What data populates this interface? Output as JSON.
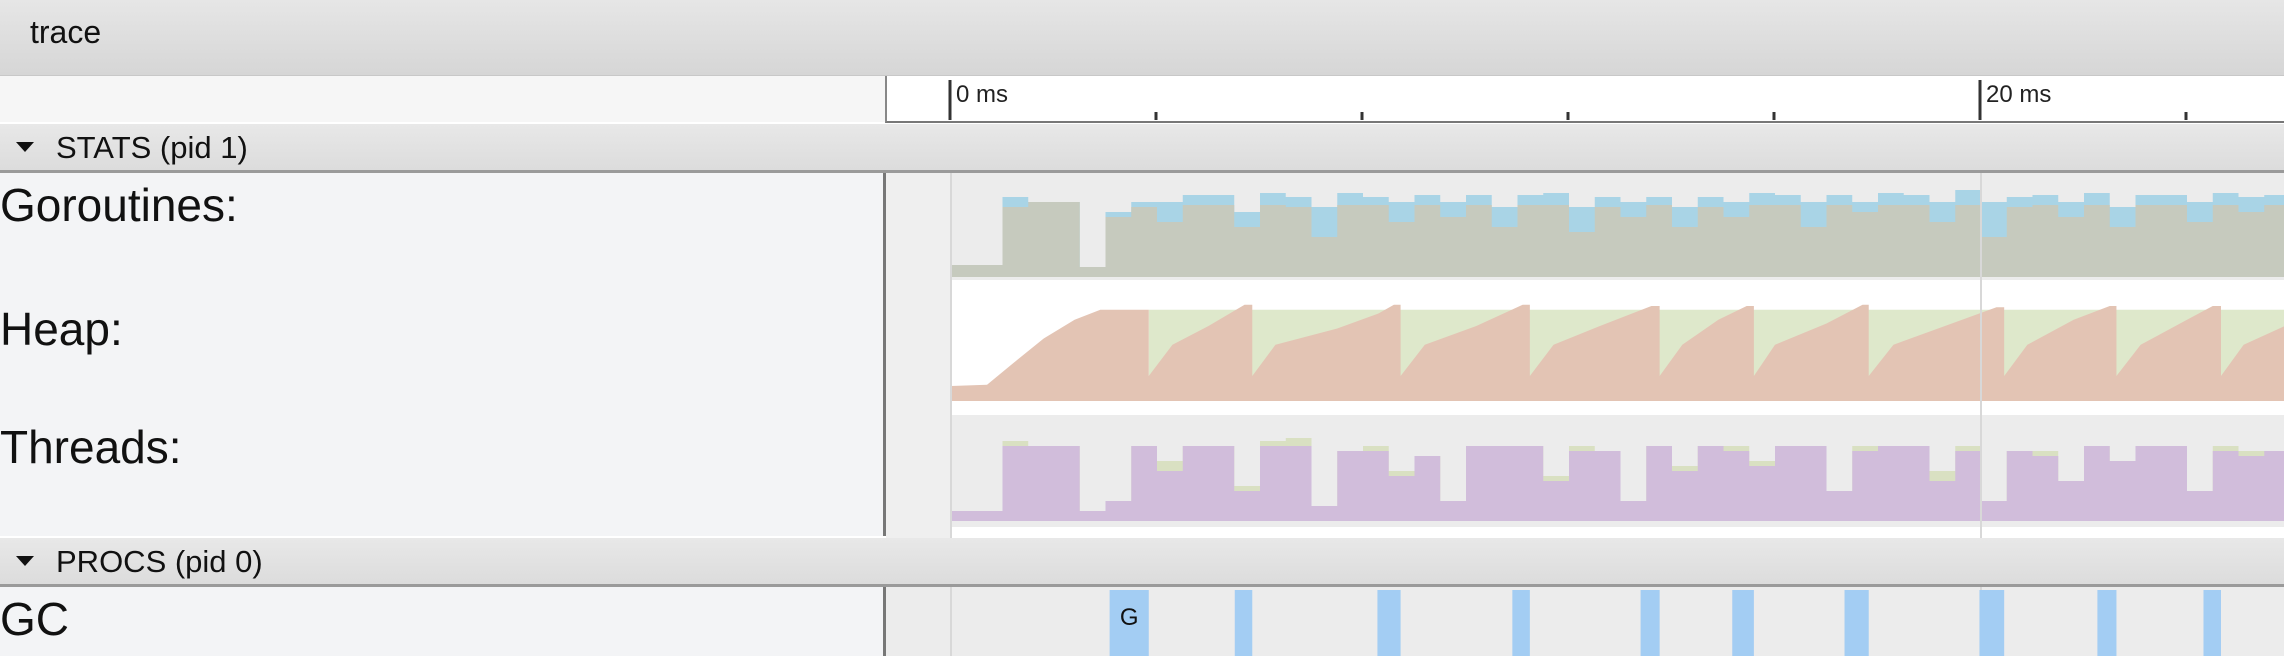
{
  "window": {
    "title": "trace"
  },
  "ruler": {
    "labels": [
      {
        "t": 0,
        "text": "0 ms"
      },
      {
        "t": 20,
        "text": "20 ms"
      }
    ],
    "tick_ms": [
      0,
      4,
      8,
      12,
      16,
      20,
      24
    ],
    "visible_range_ms": [
      0,
      25.9
    ]
  },
  "groups": [
    {
      "label": "STATS (pid 1)",
      "expanded": true
    },
    {
      "label": "PROCS (pid 0)",
      "expanded": true
    }
  ],
  "tracks": {
    "goroutines": {
      "label": "Goroutines:"
    },
    "heap": {
      "label": "Heap:"
    },
    "threads": {
      "label": "Threads:"
    },
    "gc": {
      "label": "GC",
      "first_slice_label": "G"
    }
  },
  "colors": {
    "goroutines_base": "#c6cabe",
    "goroutines_top": "#a9d4e6",
    "heap_alloc": "#e3c4b4",
    "heap_next_gc": "#dee8cb",
    "threads_base": "#d1bddb",
    "threads_top": "#d9e0c2",
    "gc_slice": "#a3cdf3"
  },
  "chart_data": [
    {
      "type": "area",
      "name": "goroutines",
      "x_step_ms": 0.5,
      "series": [
        {
          "values": [
            0.12,
            0.12,
            0.7,
            0.75,
            0.75,
            0.1,
            0.6,
            0.7,
            0.55,
            0.72,
            0.72,
            0.5,
            0.72,
            0.7,
            0.4,
            0.72,
            0.72,
            0.55,
            0.72,
            0.6,
            0.72,
            0.5,
            0.72,
            0.72,
            0.45,
            0.7,
            0.6,
            0.72,
            0.5,
            0.7,
            0.6,
            0.72,
            0.72,
            0.5,
            0.72,
            0.65,
            0.72,
            0.72,
            0.55,
            0.72,
            0.4,
            0.7,
            0.72,
            0.6,
            0.72,
            0.5,
            0.72,
            0.72,
            0.55,
            0.72,
            0.65,
            0.72
          ]
        },
        {
          "values": [
            0,
            0,
            0.1,
            0,
            0,
            0,
            0.05,
            0.05,
            0.2,
            0.1,
            0.1,
            0.15,
            0.12,
            0.1,
            0.3,
            0.12,
            0.08,
            0.2,
            0.1,
            0.15,
            0.1,
            0.2,
            0.1,
            0.12,
            0.25,
            0.1,
            0.15,
            0.08,
            0.2,
            0.1,
            0.15,
            0.12,
            0.1,
            0.25,
            0.1,
            0.1,
            0.12,
            0.1,
            0.2,
            0.15,
            0.35,
            0.1,
            0.1,
            0.15,
            0.12,
            0.2,
            0.1,
            0.1,
            0.2,
            0.12,
            0.15,
            0.1
          ]
        }
      ]
    },
    {
      "type": "area",
      "name": "heap",
      "next_gc": 0.73,
      "alloc_points": [
        [
          0,
          0.12
        ],
        [
          0.7,
          0.13
        ],
        [
          1.2,
          0.3
        ],
        [
          1.8,
          0.5
        ],
        [
          2.4,
          0.65
        ],
        [
          2.9,
          0.73
        ],
        [
          3.84,
          0.73
        ],
        [
          3.84,
          0.2
        ],
        [
          4.3,
          0.45
        ],
        [
          5.0,
          0.6
        ],
        [
          5.7,
          0.77
        ],
        [
          5.85,
          0.77
        ],
        [
          5.85,
          0.2
        ],
        [
          6.3,
          0.45
        ],
        [
          7.5,
          0.58
        ],
        [
          8.3,
          0.7
        ],
        [
          8.6,
          0.77
        ],
        [
          8.73,
          0.77
        ],
        [
          8.73,
          0.2
        ],
        [
          9.2,
          0.45
        ],
        [
          10.2,
          0.6
        ],
        [
          11.1,
          0.77
        ],
        [
          11.24,
          0.77
        ],
        [
          11.24,
          0.2
        ],
        [
          11.7,
          0.45
        ],
        [
          12.6,
          0.6
        ],
        [
          13.6,
          0.76
        ],
        [
          13.76,
          0.76
        ],
        [
          13.76,
          0.2
        ],
        [
          14.2,
          0.45
        ],
        [
          14.9,
          0.65
        ],
        [
          15.45,
          0.76
        ],
        [
          15.59,
          0.76
        ],
        [
          15.59,
          0.2
        ],
        [
          16.0,
          0.45
        ],
        [
          17.0,
          0.62
        ],
        [
          17.7,
          0.77
        ],
        [
          17.82,
          0.77
        ],
        [
          17.82,
          0.2
        ],
        [
          18.3,
          0.45
        ],
        [
          19.3,
          0.6
        ],
        [
          20.3,
          0.75
        ],
        [
          20.45,
          0.75
        ],
        [
          20.45,
          0.2
        ],
        [
          20.9,
          0.45
        ],
        [
          21.8,
          0.65
        ],
        [
          22.5,
          0.76
        ],
        [
          22.63,
          0.76
        ],
        [
          22.63,
          0.2
        ],
        [
          23.1,
          0.45
        ],
        [
          24.0,
          0.65
        ],
        [
          24.5,
          0.76
        ],
        [
          24.66,
          0.76
        ],
        [
          24.66,
          0.2
        ],
        [
          25.1,
          0.45
        ],
        [
          25.9,
          0.6
        ]
      ]
    },
    {
      "type": "area",
      "name": "threads",
      "x_step_ms": 0.5,
      "series": [
        {
          "values": [
            0.1,
            0.1,
            0.75,
            0.75,
            0.75,
            0.1,
            0.2,
            0.75,
            0.5,
            0.75,
            0.75,
            0.3,
            0.75,
            0.75,
            0.15,
            0.7,
            0.7,
            0.45,
            0.65,
            0.2,
            0.75,
            0.75,
            0.75,
            0.4,
            0.7,
            0.7,
            0.2,
            0.75,
            0.5,
            0.75,
            0.7,
            0.55,
            0.75,
            0.75,
            0.3,
            0.7,
            0.75,
            0.75,
            0.4,
            0.7,
            0.2,
            0.7,
            0.65,
            0.4,
            0.75,
            0.6,
            0.75,
            0.75,
            0.3,
            0.7,
            0.65,
            0.7
          ]
        },
        {
          "values": [
            0,
            0,
            0.05,
            0,
            0,
            0,
            0,
            0,
            0.1,
            0,
            0,
            0.05,
            0.05,
            0.08,
            0,
            0,
            0.05,
            0.05,
            0,
            0,
            0,
            0,
            0,
            0.05,
            0.05,
            0,
            0,
            0,
            0.05,
            0,
            0.05,
            0.05,
            0,
            0,
            0,
            0.05,
            0,
            0,
            0.1,
            0.05,
            0,
            0,
            0.05,
            0,
            0,
            0,
            0,
            0,
            0,
            0.05,
            0.05,
            0
          ]
        }
      ]
    },
    {
      "type": "timeline",
      "name": "gc",
      "slices_ms": [
        [
          3.08,
          3.84
        ],
        [
          5.51,
          5.85
        ],
        [
          8.28,
          8.73
        ],
        [
          10.9,
          11.24
        ],
        [
          13.39,
          13.76
        ],
        [
          15.17,
          15.59
        ],
        [
          17.35,
          17.82
        ],
        [
          19.97,
          20.45
        ],
        [
          22.26,
          22.63
        ],
        [
          24.32,
          24.66
        ]
      ]
    }
  ]
}
